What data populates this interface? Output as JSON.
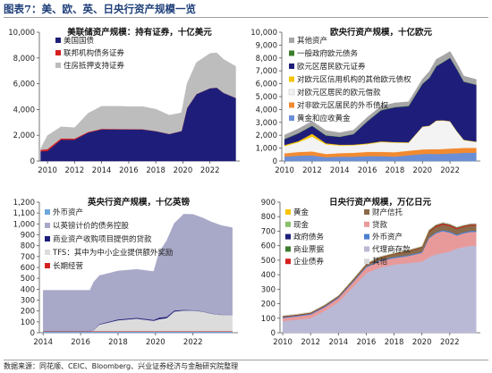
{
  "figure": {
    "title": "图表7：美、欧、英、日央行资产规模一览",
    "source": "数据来源：同花顺、CEIC、Bloomberg、兴业证券经济与金融研究院整理"
  },
  "chart_data": [
    {
      "id": "fed",
      "type": "area",
      "stacked": true,
      "title": "美联储资产规模：持有证券，十亿美元",
      "xlabel": "",
      "ylabel": "",
      "xlim": [
        2009.4,
        2024.2
      ],
      "ylim": [
        0,
        10000
      ],
      "yticks": [
        0,
        2000,
        4000,
        6000,
        8000,
        10000
      ],
      "xticks": [
        2010,
        2012,
        2014,
        2016,
        2018,
        2020,
        2022
      ],
      "legend_position": "top-left",
      "x": [
        2009.5,
        2010,
        2011,
        2012,
        2013,
        2014,
        2015,
        2016,
        2017,
        2018,
        2019,
        2019.9,
        2020.3,
        2021,
        2022,
        2022.5,
        2023,
        2023.9
      ],
      "series": [
        {
          "name": "美国国债",
          "color": "#1e1e7a",
          "values": [
            760,
            780,
            1650,
            1660,
            2200,
            2460,
            2460,
            2460,
            2460,
            2320,
            2100,
            2330,
            4100,
            5200,
            5650,
            5700,
            5300,
            4900
          ]
        },
        {
          "name": "联邦机构债务证券",
          "color": "#d42020",
          "values": [
            110,
            150,
            110,
            80,
            60,
            40,
            35,
            20,
            10,
            5,
            3,
            2,
            2,
            2,
            2,
            2,
            2,
            2
          ]
        },
        {
          "name": "住房抵押支持证券",
          "color": "#bdbdbd",
          "values": [
            100,
            1050,
            900,
            850,
            1450,
            1750,
            1760,
            1750,
            1760,
            1700,
            1450,
            1420,
            1900,
            2450,
            2700,
            2700,
            2600,
            2450
          ]
        }
      ]
    },
    {
      "id": "ecb",
      "type": "area",
      "stacked": true,
      "title": "欧央行资产规模，十亿欧元",
      "xlabel": "",
      "ylabel": "",
      "xlim": [
        2009.8,
        2024.2
      ],
      "ylim": [
        0,
        10000
      ],
      "yticks": [
        0,
        1000,
        2000,
        3000,
        4000,
        5000,
        6000,
        7000,
        8000,
        9000,
        10000
      ],
      "xticks": [
        2010,
        2012,
        2014,
        2016,
        2018,
        2020,
        2022
      ],
      "legend_position": "top-left",
      "x": [
        2010,
        2011,
        2012,
        2013,
        2014,
        2015,
        2016,
        2017,
        2018,
        2019,
        2020,
        2020.5,
        2021,
        2021.5,
        2022,
        2022.5,
        2023,
        2023.9
      ],
      "series": [
        {
          "name": "黄金和应收黄金",
          "color": "#6b8fd6",
          "values": [
            350,
            420,
            440,
            300,
            340,
            340,
            380,
            380,
            350,
            450,
            540,
            560,
            550,
            560,
            590,
            600,
            640,
            650
          ]
        },
        {
          "name": "对非欧元区居民的外币债权",
          "color": "#f28a30",
          "values": [
            250,
            280,
            300,
            250,
            270,
            300,
            330,
            330,
            340,
            350,
            360,
            360,
            370,
            380,
            380,
            390,
            380,
            380
          ]
        },
        {
          "name": "对欧元区居民的欧元借款",
          "color": "#f3f3f3",
          "values": [
            560,
            750,
            1150,
            750,
            600,
            580,
            600,
            760,
            740,
            620,
            1750,
            1800,
            2200,
            2200,
            2100,
            1300,
            600,
            450
          ]
        },
        {
          "name": "对欧元区信用机构的其他欧元债权",
          "color": "#f5c400",
          "values": [
            80,
            90,
            230,
            80,
            60,
            60,
            60,
            60,
            40,
            40,
            30,
            30,
            30,
            30,
            30,
            30,
            30,
            30
          ]
        },
        {
          "name": "欧元区居民欧元证券",
          "color": "#1e1e7a",
          "values": [
            450,
            600,
            600,
            600,
            600,
            800,
            1700,
            2400,
            2700,
            2800,
            3300,
            3700,
            4200,
            4500,
            4900,
            4800,
            4500,
            4400
          ]
        },
        {
          "name": "一般政府欧元债务",
          "color": "#3c7d2e",
          "values": [
            30,
            30,
            30,
            30,
            25,
            25,
            25,
            25,
            25,
            25,
            25,
            25,
            25,
            25,
            25,
            25,
            25,
            25
          ]
        },
        {
          "name": "其他资产",
          "color": "#a6a6a6",
          "values": [
            300,
            330,
            350,
            360,
            300,
            300,
            300,
            300,
            320,
            320,
            350,
            480,
            520,
            500,
            490,
            450,
            420,
            400
          ]
        }
      ]
    },
    {
      "id": "boe",
      "type": "area",
      "stacked": true,
      "title": "英央行资产规模，十亿英镑",
      "xlabel": "",
      "ylabel": "",
      "xlim": [
        2013.8,
        2024.4
      ],
      "ylim": [
        0,
        1200
      ],
      "yticks": [
        0,
        100,
        200,
        300,
        400,
        500,
        600,
        700,
        800,
        900,
        1000,
        1100,
        1200
      ],
      "xticks": [
        2014,
        2016,
        2018,
        2020,
        2022
      ],
      "legend_position": "top-left",
      "x": [
        2014,
        2014.5,
        2015,
        2016,
        2016.5,
        2016.7,
        2017,
        2018,
        2019,
        2019.9,
        2020.2,
        2020.6,
        2021,
        2021.5,
        2022,
        2022.5,
        2023,
        2023.5,
        2024.1
      ],
      "series": [
        {
          "name": "外币资产",
          "color": "#6fa8dc",
          "values": [
            10,
            10,
            10,
            10,
            10,
            10,
            10,
            10,
            10,
            10,
            10,
            10,
            10,
            10,
            10,
            10,
            10,
            10,
            10
          ]
        },
        {
          "name": "长期经营",
          "color": "#d42020",
          "values": [
            5,
            5,
            5,
            5,
            5,
            5,
            5,
            5,
            5,
            5,
            5,
            5,
            5,
            5,
            5,
            5,
            5,
            5,
            5
          ]
        },
        {
          "name": "TFS：其中为中小企业提供额外奖励",
          "color": "#dcdcdc",
          "values": [
            0,
            0,
            0,
            0,
            0,
            10,
            60,
            100,
            115,
            95,
            110,
            120,
            180,
            190,
            190,
            180,
            160,
            150,
            150
          ]
        },
        {
          "name": "商业资产收购项目提供的贷款",
          "color": "#1e1e7a",
          "values": [
            0,
            0,
            0,
            0,
            0,
            0,
            5,
            8,
            8,
            8,
            15,
            12,
            10,
            5,
            3,
            2,
            2,
            1,
            1
          ]
        },
        {
          "name": "以英镑计价的债务控股",
          "color": "#a8a8c8",
          "values": [
            375,
            375,
            375,
            375,
            375,
            440,
            445,
            445,
            445,
            445,
            600,
            700,
            800,
            880,
            880,
            860,
            840,
            820,
            800
          ]
        }
      ]
    },
    {
      "id": "boj",
      "type": "area",
      "stacked": true,
      "title": "日央行资产规模，万亿日元",
      "xlabel": "",
      "ylabel": "",
      "xlim": [
        2009.8,
        2024.2
      ],
      "ylim": [
        0,
        900
      ],
      "yticks": [
        0,
        100,
        200,
        300,
        400,
        500,
        600,
        700,
        800,
        900
      ],
      "xticks": [
        2010,
        2012,
        2014,
        2016,
        2018,
        2020,
        2022
      ],
      "legend_position": "top-left",
      "x": [
        2010,
        2011,
        2012,
        2013,
        2014,
        2015,
        2016,
        2017,
        2018,
        2019,
        2020,
        2020.5,
        2021,
        2021.5,
        2022,
        2022.5,
        2023,
        2023.5,
        2023.9
      ],
      "series": [
        {
          "name": "代理商存款",
          "color": "#b9b9d6",
          "values": [
            80,
            90,
            100,
            150,
            210,
            310,
            410,
            450,
            470,
            480,
            490,
            520,
            540,
            550,
            560,
            580,
            590,
            600,
            600
          ]
        },
        {
          "name": "贷款",
          "color": "#e89a9a",
          "values": [
            22,
            22,
            25,
            25,
            28,
            32,
            40,
            45,
            45,
            48,
            60,
            130,
            145,
            150,
            130,
            90,
            95,
            95,
            95
          ]
        },
        {
          "name": "外币资产",
          "color": "#4a7fd0",
          "values": [
            6,
            6,
            6,
            6,
            6,
            7,
            7,
            7,
            7,
            7,
            7,
            7,
            7,
            8,
            8,
            8,
            8,
            8,
            8
          ]
        },
        {
          "name": "财产信托",
          "color": "#8b6b4a",
          "values": [
            1,
            2,
            3,
            3,
            4,
            7,
            11,
            15,
            19,
            26,
            30,
            35,
            37,
            37,
            37,
            37,
            37,
            37,
            37
          ]
        },
        {
          "name": "企业债券",
          "color": "#d42020",
          "values": [
            4,
            3,
            3,
            3,
            3,
            3,
            3,
            3,
            3,
            3,
            3,
            6,
            8,
            8,
            8,
            7,
            6,
            6,
            6
          ]
        },
        {
          "name": "商业票据",
          "color": "#3c7d2e",
          "values": [
            1,
            1,
            1,
            2,
            2,
            2,
            2,
            2,
            2,
            2,
            3,
            6,
            4,
            3,
            3,
            3,
            2,
            2,
            2
          ]
        },
        {
          "name": "政府债务",
          "color": "#1e1e7a",
          "values": [
            1,
            1,
            1,
            1,
            1,
            1,
            1,
            1,
            1,
            1,
            1,
            1,
            1,
            1,
            1,
            1,
            1,
            1,
            1
          ]
        },
        {
          "name": "现金",
          "color": "#8ac06a",
          "values": [
            1,
            1,
            1,
            1,
            1,
            1,
            1,
            1,
            1,
            1,
            1,
            1,
            1,
            1,
            1,
            1,
            1,
            1,
            1
          ]
        },
        {
          "name": "黄金",
          "color": "#f5c400",
          "values": [
            0.4,
            0.4,
            0.4,
            0.4,
            0.4,
            0.4,
            0.4,
            0.4,
            0.4,
            0.4,
            0.4,
            0.4,
            0.4,
            0.4,
            0.4,
            0.4,
            0.4,
            0.4,
            0.4
          ]
        },
        {
          "name": "其他",
          "color": "#d8d8d8",
          "values": [
            3,
            3,
            3,
            3,
            3,
            3,
            3,
            3,
            3,
            3,
            4,
            4,
            4,
            4,
            4,
            4,
            4,
            4,
            4
          ]
        }
      ]
    }
  ],
  "legend_layout": [
    {
      "columns": 1,
      "order": [
        0,
        1,
        2
      ]
    },
    {
      "columns": 1,
      "order": [
        6,
        5,
        4,
        3,
        2,
        1,
        0
      ]
    },
    {
      "columns": 1,
      "order": [
        0,
        4,
        3,
        2,
        1
      ]
    },
    {
      "columns": 2,
      "order": [
        8,
        7,
        6,
        5,
        4,
        3,
        1,
        2,
        0,
        9
      ]
    }
  ]
}
